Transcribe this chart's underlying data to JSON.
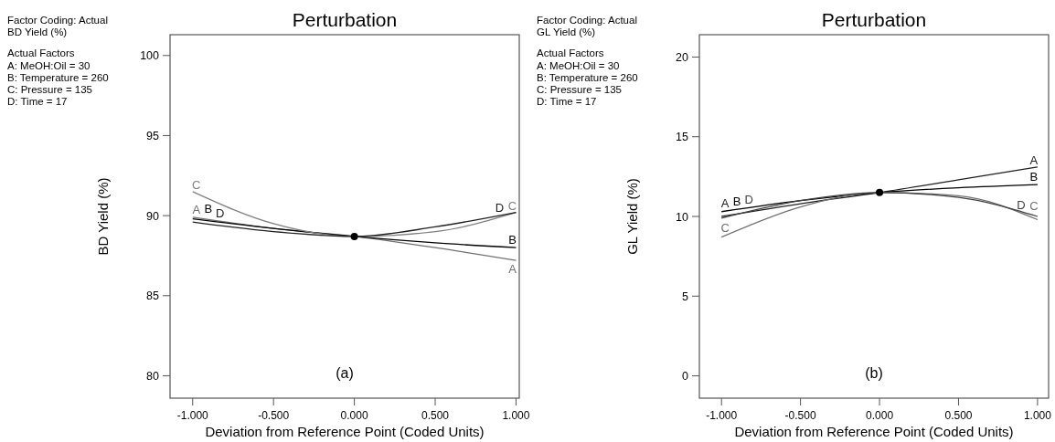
{
  "chart_data": [
    {
      "type": "line",
      "title": "Perturbation",
      "xlabel": "Deviation from Reference Point (Coded Units)",
      "ylabel": "BD Yield  (%)",
      "annotations": [
        "Factor Coding: Actual",
        "BD Yield  (%)",
        "Actual Factors",
        "A: MeOH:Oil = 30",
        "B: Temperature = 260",
        "C: Pressure = 135",
        "D: Time = 17",
        "(a)"
      ],
      "x": [
        -1,
        -0.5,
        0,
        0.5,
        1
      ],
      "xlim": [
        -1.14,
        1.02
      ],
      "ylim": [
        78.6,
        101.3
      ],
      "xticks": [
        {
          "value": -1,
          "label": "-1.000"
        },
        {
          "value": -0.5,
          "label": "-0.500"
        },
        {
          "value": 0,
          "label": "0.000"
        },
        {
          "value": 0.5,
          "label": "0.500"
        },
        {
          "value": 1,
          "label": "1.000"
        }
      ],
      "yticks": [
        80,
        85,
        90,
        95,
        100
      ],
      "grid": false,
      "series": [
        {
          "name": "A",
          "color": "#707070",
          "values": [
            89.9,
            89.2,
            88.7,
            88.0,
            87.2
          ]
        },
        {
          "name": "B",
          "color": "#000000",
          "values": [
            89.8,
            89.2,
            88.7,
            88.3,
            88.0
          ]
        },
        {
          "name": "C",
          "color": "#808080",
          "values": [
            91.5,
            89.5,
            88.7,
            89.0,
            90.2
          ]
        },
        {
          "name": "D",
          "color": "#202020",
          "values": [
            89.6,
            89.0,
            88.7,
            89.3,
            90.2
          ]
        },
        {
          "type": "scatter",
          "color": "#000000",
          "x": [
            0
          ],
          "values": [
            88.7
          ]
        }
      ]
    },
    {
      "type": "line",
      "title": "Perturbation",
      "xlabel": "Deviation from Reference Point (Coded Units)",
      "ylabel": "GL Yield (%)",
      "annotations": [
        "Factor Coding: Actual",
        "GL Yield (%)",
        "Actual Factors",
        "A: MeOH:Oil = 30",
        "B: Temperature = 260",
        "C: Pressure = 135",
        "D: Time = 17",
        "(b)"
      ],
      "x": [
        -1,
        -0.5,
        0,
        0.5,
        1
      ],
      "xlim": [
        -1.14,
        1.07
      ],
      "ylim": [
        -1.4,
        21.4
      ],
      "xticks": [
        {
          "value": -1,
          "label": "-1.000"
        },
        {
          "value": -0.5,
          "label": "-0.500"
        },
        {
          "value": 0,
          "label": "0.000"
        },
        {
          "value": 0.5,
          "label": "0.500"
        },
        {
          "value": 1,
          "label": "1.000"
        }
      ],
      "yticks": [
        0,
        5,
        10,
        15,
        20
      ],
      "grid": false,
      "series": [
        {
          "name": "A",
          "color": "#202020",
          "values": [
            10.0,
            10.8,
            11.5,
            12.3,
            13.1
          ]
        },
        {
          "name": "B",
          "color": "#000000",
          "values": [
            10.3,
            11.0,
            11.5,
            11.8,
            12.0
          ]
        },
        {
          "name": "C",
          "color": "#707070",
          "values": [
            8.7,
            10.6,
            11.5,
            11.3,
            9.8
          ]
        },
        {
          "name": "D",
          "color": "#404040",
          "values": [
            9.9,
            11.0,
            11.5,
            11.2,
            10.0
          ]
        },
        {
          "type": "scatter",
          "color": "#000000",
          "x": [
            0
          ],
          "values": [
            11.5
          ]
        }
      ]
    }
  ]
}
